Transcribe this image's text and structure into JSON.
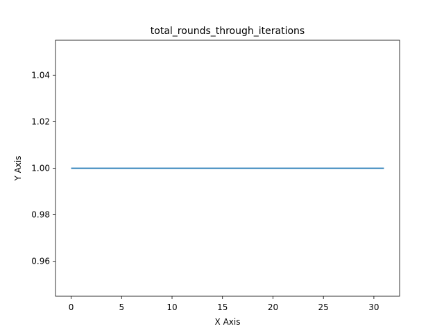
{
  "chart_data": {
    "type": "line",
    "title": "total_rounds_through_iterations",
    "xlabel": "X Axis",
    "ylabel": "Y Axis",
    "x": [
      0,
      31
    ],
    "series": [
      {
        "values": [
          1.0,
          1.0
        ],
        "color": "#1f77b4"
      }
    ],
    "xlim": [
      -1.55,
      32.55
    ],
    "ylim": [
      0.945,
      1.055
    ],
    "xticks": [
      0,
      5,
      10,
      15,
      20,
      25,
      30
    ],
    "yticks": [
      0.96,
      0.98,
      1.0,
      1.02,
      1.04
    ],
    "xtick_labels": [
      "0",
      "5",
      "10",
      "15",
      "20",
      "25",
      "30"
    ],
    "ytick_labels": [
      "0.96",
      "0.98",
      "1.00",
      "1.02",
      "1.04"
    ],
    "grid": false,
    "legend": "none"
  }
}
